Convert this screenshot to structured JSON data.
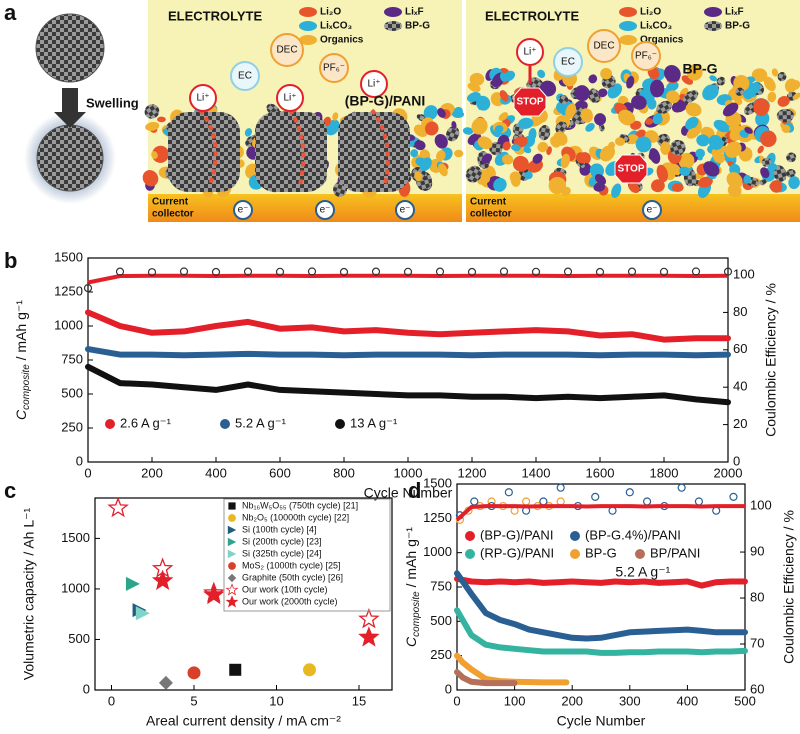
{
  "panel_a": {
    "label": "a",
    "swelling": "Swelling",
    "left": {
      "electrolyte": "ELECTROLYTE",
      "legend": [
        "Li₂O",
        "LiₓF",
        "LiₓCO₃",
        "BP-G",
        "Organics"
      ],
      "molecules": [
        "Li⁺",
        "EC",
        "DEC",
        "Li⁺",
        "PF₆⁻",
        "Li⁺"
      ],
      "material": "(BP-G)/PANI",
      "collector_lines": [
        "Current",
        "collector"
      ],
      "electrons": [
        "e⁻",
        "e⁻",
        "e⁻"
      ]
    },
    "right": {
      "electrolyte": "ELECTROLYTE",
      "legend": [
        "Li₂O",
        "LiₓF",
        "LiₓCO₃",
        "BP-G",
        "Organics"
      ],
      "molecules": [
        "Li⁺",
        "EC",
        "DEC",
        "PF₆⁻"
      ],
      "material": "BP-G",
      "stop": [
        "STOP",
        "STOP"
      ],
      "collector_lines": [
        "Current",
        "collector"
      ],
      "electrons": [
        "e⁻"
      ]
    }
  },
  "chart_data": [
    {
      "type": "line",
      "panel_label": "b",
      "x_label": "Cycle Number",
      "y_label": {
        "symbol": "C",
        "subscript": "composite",
        "unit": " / mAh g⁻¹"
      },
      "y2_label": "Coulombic Efficiency / %",
      "x": [
        0,
        100,
        200,
        300,
        400,
        500,
        600,
        700,
        800,
        900,
        1000,
        1100,
        1200,
        1300,
        1400,
        1500,
        1600,
        1700,
        1800,
        1900,
        2000
      ],
      "xlim": [
        0,
        2000
      ],
      "xticks": [
        0,
        200,
        400,
        600,
        800,
        1000,
        1200,
        1400,
        1600,
        1800,
        2000
      ],
      "ylim": [
        0,
        1500
      ],
      "yticks": [
        0,
        250,
        500,
        750,
        1000,
        1250,
        1500
      ],
      "y2lim": [
        0,
        109.1
      ],
      "y2ticks": [
        0,
        20,
        40,
        60,
        80,
        100
      ],
      "legend": "lower left",
      "series": [
        {
          "name": "2.6 A g⁻¹",
          "color": "#e3202a",
          "values": [
            1100,
            1000,
            950,
            960,
            1000,
            1030,
            980,
            990,
            960,
            970,
            950,
            940,
            950,
            960,
            970,
            960,
            930,
            940,
            900,
            910,
            910
          ]
        },
        {
          "name": "5.2 A g⁻¹",
          "color": "#2a5f93",
          "values": [
            830,
            790,
            790,
            785,
            790,
            795,
            790,
            790,
            785,
            790,
            790,
            790,
            785,
            790,
            790,
            790,
            785,
            790,
            790,
            785,
            790
          ]
        },
        {
          "name": "13 A g⁻¹",
          "color": "#111111",
          "values": [
            700,
            580,
            570,
            550,
            530,
            570,
            530,
            520,
            510,
            500,
            490,
            490,
            480,
            480,
            470,
            480,
            470,
            480,
            490,
            460,
            440
          ]
        }
      ],
      "efficiency": [
        {
          "color": "#e3202a",
          "marker": "line",
          "values": [
            96,
            99.5,
            99.6,
            99.6,
            99.5,
            99.6,
            99.6,
            99.5,
            99.6,
            99.6,
            99.6,
            99.5,
            99.6,
            99.6,
            99.6,
            99.5,
            99.6,
            99.6,
            99.6,
            99.5,
            99.6
          ]
        },
        {
          "color": "#333333",
          "marker": "open-circle",
          "values": [
            93,
            101.8,
            101.5,
            101.9,
            101.6,
            101.8,
            101.7,
            101.9,
            101.6,
            101.8,
            101.7,
            101.8,
            101.6,
            101.9,
            101.7,
            101.8,
            101.6,
            101.8,
            101.7,
            101.9,
            101.8
          ]
        }
      ]
    },
    {
      "type": "scatter",
      "panel_label": "c",
      "x_label": "Areal current density / mA cm⁻²",
      "y_label": "Volumetric capacity / Ah L⁻¹",
      "xlim": [
        -1,
        17
      ],
      "xticks": [
        0,
        5,
        10,
        15
      ],
      "ylim": [
        0,
        1900
      ],
      "yticks": [
        0,
        500,
        1000,
        1500
      ],
      "legend": "upper right",
      "series": [
        {
          "name": "Nb₁₆W₅O₅₅ (750th cycle) [21]",
          "color": "#111111",
          "marker": "square",
          "x": [
            7.5
          ],
          "values": [
            200
          ]
        },
        {
          "name": "Nb₂O₅ (10000th cycle) [22]",
          "color": "#e8b820",
          "marker": "circle",
          "x": [
            12
          ],
          "values": [
            200
          ]
        },
        {
          "name": "Si (100th cycle) [4]",
          "color": "#1f5f7a",
          "marker": "triangle",
          "x": [
            1.7
          ],
          "values": [
            790
          ]
        },
        {
          "name": "Si (200th cycle) [23]",
          "color": "#2ca58d",
          "marker": "triangle",
          "x": [
            1.3
          ],
          "values": [
            1050
          ]
        },
        {
          "name": "Si (325th cycle) [24]",
          "color": "#7fd3c8",
          "marker": "triangle",
          "x": [
            1.9
          ],
          "values": [
            760
          ]
        },
        {
          "name": "MoS₂ (1000th cycle) [25]",
          "color": "#d9402b",
          "marker": "circle",
          "x": [
            5
          ],
          "values": [
            170
          ]
        },
        {
          "name": "Graphite (50th cycle) [26]",
          "color": "#777777",
          "marker": "diamond",
          "x": [
            3.3
          ],
          "values": [
            70
          ]
        },
        {
          "name": "Our work (10th cycle)",
          "color": "#e3202a",
          "marker": "star-open",
          "x": [
            0.4,
            3.1,
            6.2,
            15.6
          ],
          "values": [
            1800,
            1200,
            960,
            700
          ]
        },
        {
          "name": "Our work (2000th cycle)",
          "color": "#e3202a",
          "marker": "star",
          "x": [
            3.1,
            6.2,
            15.6
          ],
          "values": [
            1080,
            940,
            520
          ]
        }
      ]
    },
    {
      "type": "line",
      "panel_label": "d",
      "x_label": "Cycle Number",
      "y_label": {
        "symbol": "C",
        "subscript": "composite",
        "unit": " / mAh g⁻¹"
      },
      "y2_label": "Coulombic Efficiency / %",
      "annotation": "5.2 A g⁻¹",
      "xlim": [
        0,
        500
      ],
      "xticks": [
        0,
        100,
        200,
        300,
        400,
        500
      ],
      "ylim": [
        0,
        1500
      ],
      "yticks": [
        0,
        250,
        500,
        750,
        1000,
        1250,
        1500
      ],
      "y2lim": [
        60,
        104.8
      ],
      "y2ticks": [
        60,
        70,
        80,
        90,
        100
      ],
      "legend": "upper center",
      "series": [
        {
          "name": "(BP-G)/PANI",
          "color": "#e3202a",
          "x": [
            0,
            25,
            50,
            75,
            100,
            125,
            150,
            175,
            200,
            225,
            250,
            275,
            300,
            325,
            350,
            375,
            400,
            425,
            450,
            475,
            500
          ],
          "values": [
            810,
            790,
            785,
            790,
            785,
            790,
            780,
            785,
            790,
            785,
            780,
            790,
            785,
            790,
            780,
            785,
            790,
            760,
            785,
            790,
            790
          ]
        },
        {
          "name": "(BP-G.4%)/PANI",
          "color": "#2a5f93",
          "x": [
            0,
            25,
            50,
            75,
            100,
            125,
            150,
            175,
            200,
            225,
            250,
            275,
            300,
            325,
            350,
            375,
            400,
            425,
            450,
            475,
            500
          ],
          "values": [
            850,
            700,
            560,
            510,
            480,
            440,
            420,
            400,
            380,
            375,
            380,
            400,
            420,
            425,
            430,
            435,
            440,
            430,
            420,
            420,
            420
          ]
        },
        {
          "name": "(RP-G)/PANI",
          "color": "#33b3a0",
          "x": [
            0,
            25,
            50,
            75,
            100,
            125,
            150,
            175,
            200,
            225,
            250,
            275,
            300,
            325,
            350,
            375,
            400,
            425,
            450,
            475,
            500
          ],
          "values": [
            580,
            400,
            330,
            310,
            300,
            290,
            280,
            280,
            280,
            280,
            270,
            270,
            275,
            275,
            280,
            280,
            280,
            275,
            280,
            280,
            285
          ]
        },
        {
          "name": "BP-G",
          "color": "#f0a030",
          "x": [
            0,
            10,
            25,
            50,
            75,
            100,
            150,
            190
          ],
          "values": [
            250,
            200,
            150,
            80,
            65,
            60,
            55,
            55
          ]
        },
        {
          "name": "BP/PANI",
          "color": "#b5705a",
          "x": [
            0,
            10,
            25,
            50,
            75,
            100
          ],
          "values": [
            130,
            90,
            60,
            50,
            50,
            50
          ]
        }
      ],
      "efficiency": [
        {
          "color": "#f0a030",
          "marker": "open-circle",
          "x": [
            5,
            20,
            40,
            60,
            80,
            100,
            120,
            140,
            160,
            180
          ],
          "values": [
            97,
            99,
            100,
            101,
            100,
            99,
            101,
            100,
            100,
            101
          ]
        },
        {
          "color": "#2a5f93",
          "marker": "open-circle",
          "x": [
            5,
            30,
            60,
            90,
            120,
            150,
            180,
            210,
            240,
            270,
            300,
            330,
            360,
            390,
            420,
            450,
            480
          ],
          "values": [
            98,
            101,
            100,
            103,
            99,
            101,
            104,
            100,
            102,
            99,
            103,
            101,
            100,
            104,
            101,
            99,
            102
          ]
        },
        {
          "color": "#e3202a",
          "marker": "line",
          "x": [
            0,
            25,
            50,
            75,
            100,
            125,
            150,
            175,
            200,
            225,
            250,
            275,
            300,
            325,
            350,
            375,
            400,
            425,
            450,
            475,
            500
          ],
          "values": [
            97,
            99.8,
            100,
            100,
            100,
            99.9,
            100,
            100,
            100,
            99.9,
            100,
            100,
            100,
            99.9,
            100,
            100,
            100,
            99.9,
            100,
            100,
            100
          ]
        }
      ]
    }
  ]
}
